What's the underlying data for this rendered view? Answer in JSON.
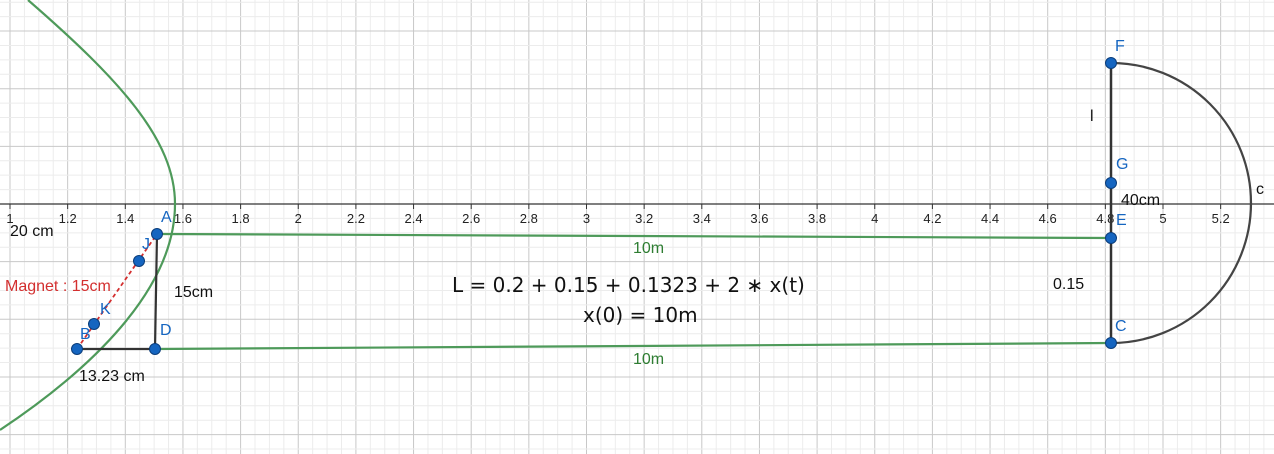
{
  "axis": {
    "ticks": [
      "1",
      "1.2",
      "1.4",
      "1.6",
      "1.8",
      "2",
      "2.2",
      "2.4",
      "2.6",
      "2.8",
      "3",
      "3.2",
      "3.4",
      "3.6",
      "3.8",
      "4",
      "4.2",
      "4.4",
      "4.6",
      "4.8",
      "5",
      "5.2"
    ]
  },
  "points": {
    "A": "A",
    "B": "B",
    "C": "C",
    "D": "D",
    "E": "E",
    "F": "F",
    "G": "G",
    "J": "J",
    "K": "K"
  },
  "labels": {
    "twenty_cm": "20 cm",
    "magnet": "Magnet : 15cm",
    "fifteen_cm": "15cm",
    "thirteen_cm": "13.23 cm",
    "top_10m": "10m",
    "bottom_10m": "10m",
    "formula_L": "L = 0.2 + 0.15 + 0.1323 + 2 ∗ x(t)",
    "formula_x0": "x(0) = 10m",
    "forty_cm": "40cm",
    "zero_15": "0.15",
    "l_label": "l",
    "c_label": "c"
  },
  "colors": {
    "green": "#4e9a5a",
    "dark": "#333333",
    "point": "#1565c0",
    "magnet": "#d32f2f",
    "grid_minor": "#ececec",
    "grid_major": "#c8c8c8"
  }
}
